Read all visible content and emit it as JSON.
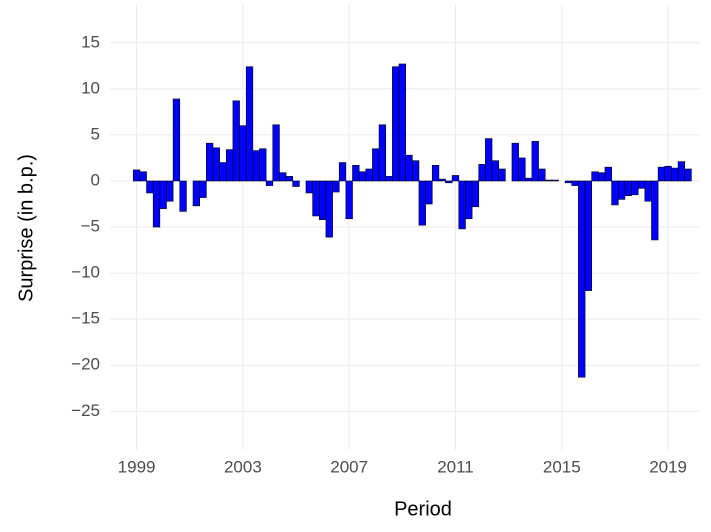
{
  "chart_data": {
    "type": "bar",
    "x_label": "Period",
    "y_label": "Surprise (in b.p.)",
    "x": [
      1999,
      1999.25,
      1999.5,
      1999.75,
      2000,
      2000.25,
      2000.5,
      2000.75,
      2001,
      2001.25,
      2001.5,
      2001.75,
      2002,
      2002.25,
      2002.5,
      2002.75,
      2003,
      2003.25,
      2003.5,
      2003.75,
      2004,
      2004.25,
      2004.5,
      2004.75,
      2005,
      2005.25,
      2005.5,
      2005.75,
      2006,
      2006.25,
      2006.5,
      2006.75,
      2007,
      2007.25,
      2007.5,
      2007.75,
      2008,
      2008.25,
      2008.5,
      2008.75,
      2009,
      2009.25,
      2009.5,
      2009.75,
      2010,
      2010.25,
      2010.5,
      2010.75,
      2011,
      2011.25,
      2011.5,
      2011.75,
      2012,
      2012.25,
      2012.5,
      2012.75,
      2013,
      2013.25,
      2013.5,
      2013.75,
      2014,
      2014.25,
      2014.5,
      2014.75,
      2015,
      2015.25,
      2015.5,
      2015.75,
      2016,
      2016.25,
      2016.5,
      2016.75,
      2017,
      2017.25,
      2017.5,
      2017.75,
      2018,
      2018.25,
      2018.5,
      2018.75,
      2019,
      2019.25,
      2019.5,
      2019.75
    ],
    "values": [
      1.2,
      1.0,
      -1.3,
      -5.0,
      -3.0,
      -2.2,
      8.9,
      -3.3,
      0,
      -2.7,
      -1.8,
      4.1,
      3.6,
      2.0,
      3.4,
      8.7,
      6.0,
      12.4,
      3.3,
      3.5,
      -0.5,
      6.1,
      0.9,
      0.5,
      -0.6,
      0,
      -1.3,
      -3.8,
      -4.2,
      -6.1,
      -1.2,
      2.0,
      -4.1,
      1.7,
      1.0,
      1.3,
      3.5,
      6.1,
      0.5,
      12.4,
      12.7,
      2.8,
      2.2,
      -4.8,
      -2.5,
      1.7,
      0.2,
      -0.2,
      0.6,
      -5.2,
      -4.1,
      -2.8,
      1.8,
      4.6,
      2.2,
      1.3,
      0,
      4.1,
      2.5,
      0.3,
      4.3,
      1.3,
      0.1,
      0.1,
      0,
      -0.2,
      -0.5,
      -21.3,
      -11.9,
      1.0,
      0.9,
      1.5,
      -2.6,
      -2.0,
      -1.6,
      -1.5,
      -0.8,
      -2.2,
      -6.4,
      1.5,
      1.6,
      1.4,
      2.1,
      1.3
    ],
    "bar_width": 0.25,
    "color": "#0000ff",
    "edge_color": "#000000",
    "xlim": [
      1998,
      2020.2
    ],
    "xticks": [
      1999,
      2003,
      2007,
      2011,
      2015,
      2019
    ],
    "ylim": [
      -29.2,
      19.1
    ],
    "yticks": [
      {
        "value": -25,
        "label": "−25"
      },
      {
        "value": -20,
        "label": "−20"
      },
      {
        "value": -15,
        "label": "−15"
      },
      {
        "value": -10,
        "label": "−10"
      },
      {
        "value": -5,
        "label": "−5"
      },
      0,
      5,
      10,
      15
    ],
    "grid": true
  }
}
